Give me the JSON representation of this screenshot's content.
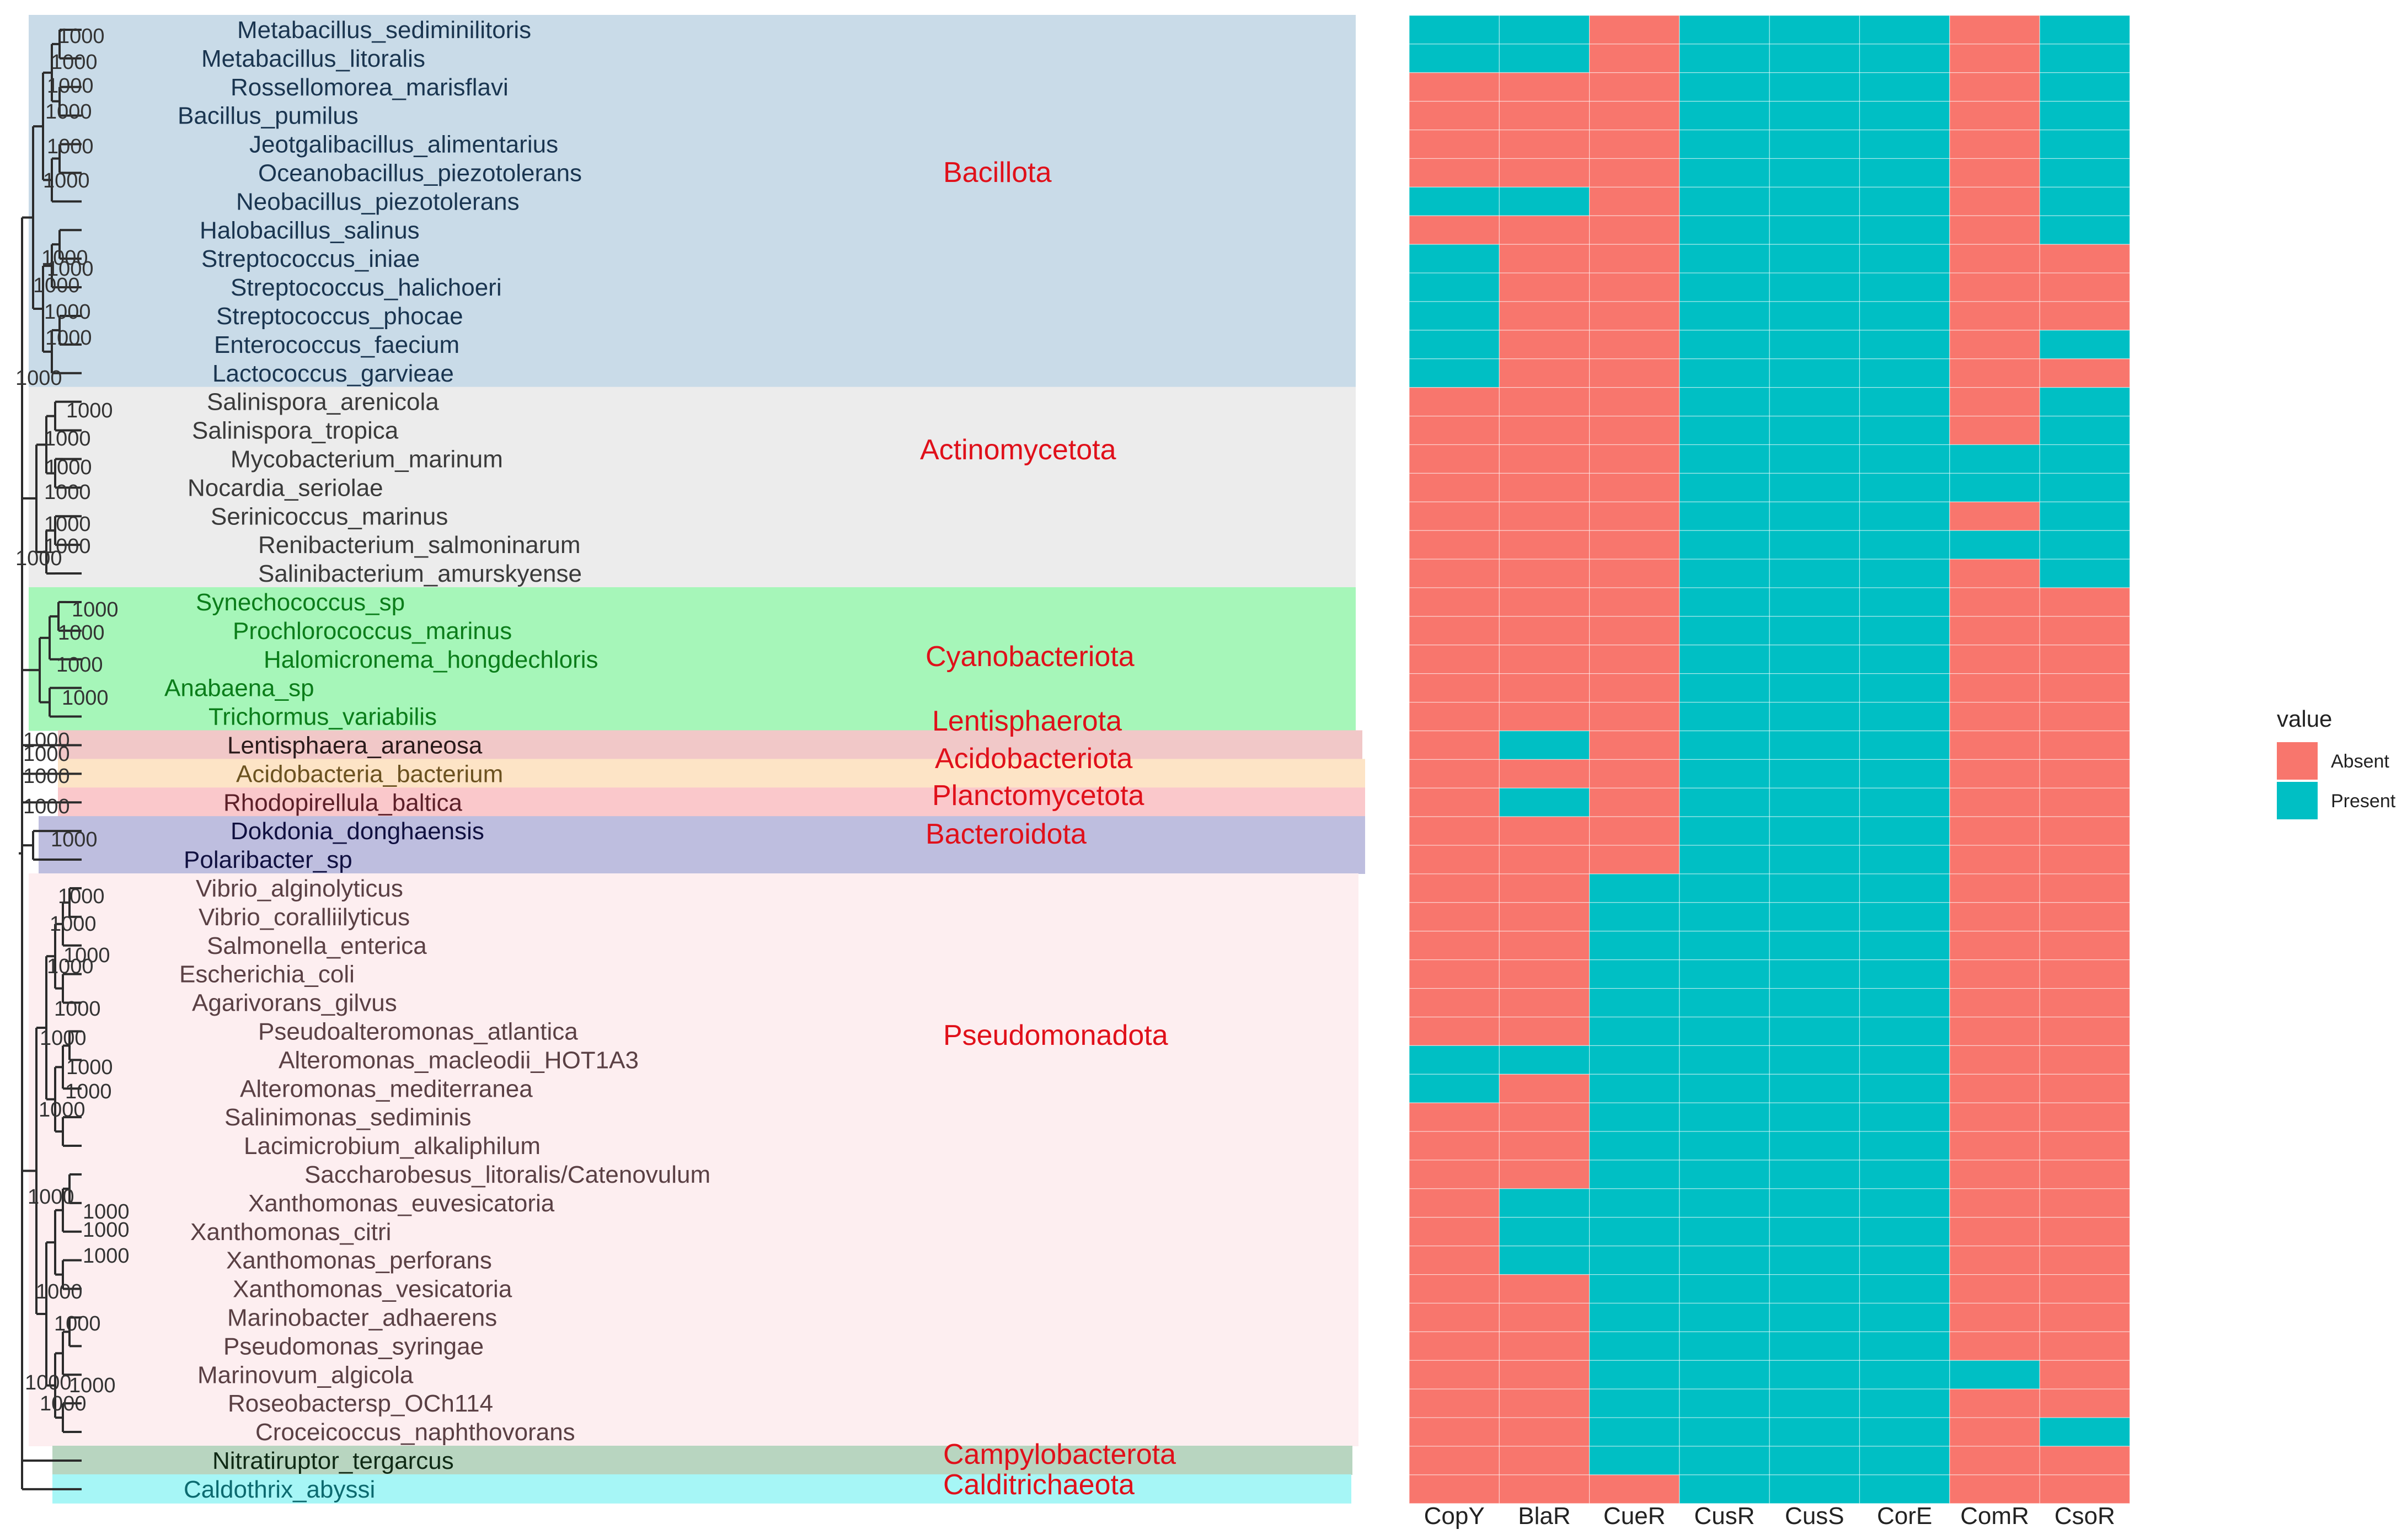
{
  "chart_data": {
    "type": "heatmap",
    "title": "",
    "xlabel": "",
    "ylabel": "",
    "genes": [
      "CopY",
      "BlaR",
      "CueR",
      "CusR",
      "CusS",
      "CorE",
      "ComR",
      "CsoR"
    ],
    "legend": {
      "title": "value",
      "placement": "right",
      "entries": [
        {
          "label": "Absent",
          "color": "#F8766D"
        },
        {
          "label": "Present",
          "color": "#00BFC4"
        }
      ]
    },
    "bootstrap_label": "1000",
    "species": [
      {
        "name": "Metabacillus_sediminilitoris",
        "phylum": "Bacillota",
        "genes": [
          1,
          1,
          0,
          1,
          1,
          1,
          0,
          1
        ]
      },
      {
        "name": "Metabacillus_litoralis",
        "phylum": "Bacillota",
        "genes": [
          1,
          1,
          0,
          1,
          1,
          1,
          0,
          1
        ]
      },
      {
        "name": "Rossellomorea_marisflavi",
        "phylum": "Bacillota",
        "genes": [
          0,
          0,
          0,
          1,
          1,
          1,
          0,
          1
        ]
      },
      {
        "name": "Bacillus_pumilus",
        "phylum": "Bacillota",
        "genes": [
          0,
          0,
          0,
          1,
          1,
          1,
          0,
          1
        ]
      },
      {
        "name": "Jeotgalibacillus_alimentarius",
        "phylum": "Bacillota",
        "genes": [
          0,
          0,
          0,
          1,
          1,
          1,
          0,
          1
        ]
      },
      {
        "name": "Oceanobacillus_piezotolerans",
        "phylum": "Bacillota",
        "genes": [
          0,
          0,
          0,
          1,
          1,
          1,
          0,
          1
        ]
      },
      {
        "name": "Neobacillus_piezotolerans",
        "phylum": "Bacillota",
        "genes": [
          1,
          1,
          0,
          1,
          1,
          1,
          0,
          1
        ]
      },
      {
        "name": "Halobacillus_salinus",
        "phylum": "Bacillota",
        "genes": [
          0,
          0,
          0,
          1,
          1,
          1,
          0,
          1
        ]
      },
      {
        "name": "Streptococcus_iniae",
        "phylum": "Bacillota",
        "genes": [
          1,
          0,
          0,
          1,
          1,
          1,
          0,
          0
        ]
      },
      {
        "name": "Streptococcus_halichoeri",
        "phylum": "Bacillota",
        "genes": [
          1,
          0,
          0,
          1,
          1,
          1,
          0,
          0
        ]
      },
      {
        "name": "Streptococcus_phocae",
        "phylum": "Bacillota",
        "genes": [
          1,
          0,
          0,
          1,
          1,
          1,
          0,
          0
        ]
      },
      {
        "name": "Enterococcus_faecium",
        "phylum": "Bacillota",
        "genes": [
          1,
          0,
          0,
          1,
          1,
          1,
          0,
          1
        ]
      },
      {
        "name": "Lactococcus_garvieae",
        "phylum": "Bacillota",
        "genes": [
          1,
          0,
          0,
          1,
          1,
          1,
          0,
          0
        ]
      },
      {
        "name": "Salinispora_arenicola",
        "phylum": "Actinomycetota",
        "genes": [
          0,
          0,
          0,
          1,
          1,
          1,
          0,
          1
        ]
      },
      {
        "name": "Salinispora_tropica",
        "phylum": "Actinomycetota",
        "genes": [
          0,
          0,
          0,
          1,
          1,
          1,
          0,
          1
        ]
      },
      {
        "name": "Mycobacterium_marinum",
        "phylum": "Actinomycetota",
        "genes": [
          0,
          0,
          0,
          1,
          1,
          1,
          1,
          1
        ]
      },
      {
        "name": "Nocardia_seriolae",
        "phylum": "Actinomycetota",
        "genes": [
          0,
          0,
          0,
          1,
          1,
          1,
          1,
          1
        ]
      },
      {
        "name": "Serinicoccus_marinus",
        "phylum": "Actinomycetota",
        "genes": [
          0,
          0,
          0,
          1,
          1,
          1,
          0,
          1
        ]
      },
      {
        "name": "Renibacterium_salmoninarum",
        "phylum": "Actinomycetota",
        "genes": [
          0,
          0,
          0,
          1,
          1,
          1,
          1,
          1
        ]
      },
      {
        "name": "Salinibacterium_amurskyense",
        "phylum": "Actinomycetota",
        "genes": [
          0,
          0,
          0,
          1,
          1,
          1,
          0,
          1
        ]
      },
      {
        "name": "Synechococcus_sp",
        "phylum": "Cyanobacteriota",
        "genes": [
          0,
          0,
          0,
          1,
          1,
          1,
          0,
          0
        ]
      },
      {
        "name": "Prochlorococcus_marinus",
        "phylum": "Cyanobacteriota",
        "genes": [
          0,
          0,
          0,
          1,
          1,
          1,
          0,
          0
        ]
      },
      {
        "name": "Halomicronema_hongdechloris",
        "phylum": "Cyanobacteriota",
        "genes": [
          0,
          0,
          0,
          1,
          1,
          1,
          0,
          0
        ]
      },
      {
        "name": "Anabaena_sp",
        "phylum": "Cyanobacteriota",
        "genes": [
          0,
          0,
          0,
          1,
          1,
          1,
          0,
          0
        ]
      },
      {
        "name": "Trichormus_variabilis",
        "phylum": "Cyanobacteriota",
        "genes": [
          0,
          0,
          0,
          1,
          1,
          1,
          0,
          0
        ]
      },
      {
        "name": "Lentisphaera_araneosa",
        "phylum": "Lentisphaerota",
        "genes": [
          0,
          1,
          0,
          1,
          1,
          1,
          0,
          0
        ]
      },
      {
        "name": "Acidobacteria_bacterium",
        "phylum": "Acidobacteriota",
        "genes": [
          0,
          0,
          0,
          1,
          1,
          1,
          0,
          0
        ]
      },
      {
        "name": "Rhodopirellula_baltica",
        "phylum": "Planctomycetota",
        "genes": [
          0,
          1,
          0,
          1,
          1,
          1,
          0,
          0
        ]
      },
      {
        "name": "Dokdonia_donghaensis",
        "phylum": "Bacteroidota",
        "genes": [
          0,
          0,
          0,
          1,
          1,
          1,
          0,
          0
        ]
      },
      {
        "name": "Polaribacter_sp",
        "phylum": "Bacteroidota",
        "genes": [
          0,
          0,
          0,
          1,
          1,
          1,
          0,
          0
        ]
      },
      {
        "name": "Vibrio_alginolyticus",
        "phylum": "Pseudomonadota",
        "genes": [
          0,
          0,
          1,
          1,
          1,
          1,
          0,
          0
        ]
      },
      {
        "name": "Vibrio_coralliilyticus",
        "phylum": "Pseudomonadota",
        "genes": [
          0,
          0,
          1,
          1,
          1,
          1,
          0,
          0
        ]
      },
      {
        "name": "Salmonella_enterica",
        "phylum": "Pseudomonadota",
        "genes": [
          0,
          0,
          1,
          1,
          1,
          1,
          0,
          0
        ]
      },
      {
        "name": "Escherichia_coli",
        "phylum": "Pseudomonadota",
        "genes": [
          0,
          0,
          1,
          1,
          1,
          1,
          0,
          0
        ]
      },
      {
        "name": "Agarivorans_gilvus",
        "phylum": "Pseudomonadota",
        "genes": [
          0,
          0,
          1,
          1,
          1,
          1,
          0,
          0
        ]
      },
      {
        "name": "Pseudoalteromonas_atlantica",
        "phylum": "Pseudomonadota",
        "genes": [
          0,
          0,
          1,
          1,
          1,
          1,
          0,
          0
        ]
      },
      {
        "name": "Alteromonas_macleodii_HOT1A3",
        "phylum": "Pseudomonadota",
        "genes": [
          1,
          1,
          1,
          1,
          1,
          1,
          0,
          0
        ]
      },
      {
        "name": "Alteromonas_mediterranea",
        "phylum": "Pseudomonadota",
        "genes": [
          1,
          0,
          1,
          1,
          1,
          1,
          0,
          0
        ]
      },
      {
        "name": "Salinimonas_sediminis",
        "phylum": "Pseudomonadota",
        "genes": [
          0,
          0,
          1,
          1,
          1,
          1,
          0,
          0
        ]
      },
      {
        "name": "Lacimicrobium_alkaliphilum",
        "phylum": "Pseudomonadota",
        "genes": [
          0,
          0,
          1,
          1,
          1,
          1,
          0,
          0
        ]
      },
      {
        "name": "Saccharobesus_litoralis/Catenovulum",
        "phylum": "Pseudomonadota",
        "genes": [
          0,
          0,
          1,
          1,
          1,
          1,
          0,
          0
        ]
      },
      {
        "name": "Xanthomonas_euvesicatoria",
        "phylum": "Pseudomonadota",
        "genes": [
          0,
          1,
          1,
          1,
          1,
          1,
          0,
          0
        ]
      },
      {
        "name": "Xanthomonas_citri",
        "phylum": "Pseudomonadota",
        "genes": [
          0,
          1,
          1,
          1,
          1,
          1,
          0,
          0
        ]
      },
      {
        "name": "Xanthomonas_perforans",
        "phylum": "Pseudomonadota",
        "genes": [
          0,
          1,
          1,
          1,
          1,
          1,
          0,
          0
        ]
      },
      {
        "name": "Xanthomonas_vesicatoria",
        "phylum": "Pseudomonadota",
        "genes": [
          0,
          0,
          1,
          1,
          1,
          1,
          0,
          0
        ]
      },
      {
        "name": "Marinobacter_adhaerens",
        "phylum": "Pseudomonadota",
        "genes": [
          0,
          0,
          1,
          1,
          1,
          1,
          0,
          0
        ]
      },
      {
        "name": "Pseudomonas_syringae",
        "phylum": "Pseudomonadota",
        "genes": [
          0,
          0,
          1,
          1,
          1,
          1,
          0,
          0
        ]
      },
      {
        "name": "Marinovum_algicola",
        "phylum": "Pseudomonadota",
        "genes": [
          0,
          0,
          1,
          1,
          1,
          1,
          1,
          0
        ]
      },
      {
        "name": "Roseobactersp_OCh114",
        "phylum": "Pseudomonadota",
        "genes": [
          0,
          0,
          1,
          1,
          1,
          1,
          0,
          0
        ]
      },
      {
        "name": "Croceicoccus_naphthovorans",
        "phylum": "Pseudomonadota",
        "genes": [
          0,
          0,
          1,
          1,
          1,
          1,
          0,
          1
        ]
      },
      {
        "name": "Nitratiruptor_tergarcus",
        "phylum": "Campylobacterota",
        "genes": [
          0,
          0,
          1,
          1,
          1,
          1,
          0,
          0
        ]
      },
      {
        "name": "Caldothrix_abyssi",
        "phylum": "Calditrichaeota",
        "genes": [
          0,
          0,
          0,
          1,
          1,
          1,
          0,
          0
        ]
      }
    ],
    "phyla": [
      {
        "name": "Bacillota",
        "color": "#c9dbe8",
        "text_color": "#1a3550"
      },
      {
        "name": "Actinomycetota",
        "color": "#ececec",
        "text_color": "#3a3a3a"
      },
      {
        "name": "Cyanobacteriota",
        "color": "#a6f6b9",
        "text_color": "#0b7d1a"
      },
      {
        "name": "Lentisphaerota",
        "color": "#f1c8c8",
        "text_color": "#2a1a1a"
      },
      {
        "name": "Acidobacteriota",
        "color": "#fde4c6",
        "text_color": "#6b5220"
      },
      {
        "name": "Planctomycetota",
        "color": "#fac8cb",
        "text_color": "#5c1f28"
      },
      {
        "name": "Bacteroidota",
        "color": "#bebedf",
        "text_color": "#101040"
      },
      {
        "name": "Pseudomonadota",
        "color": "#fdeef0",
        "text_color": "#5a4044"
      },
      {
        "name": "Campylobacterota",
        "color": "#b8d5c0",
        "text_color": "#0f2a15"
      },
      {
        "name": "Calditrichaeota",
        "color": "#a6f6f6",
        "text_color": "#0c6a6f"
      }
    ]
  }
}
